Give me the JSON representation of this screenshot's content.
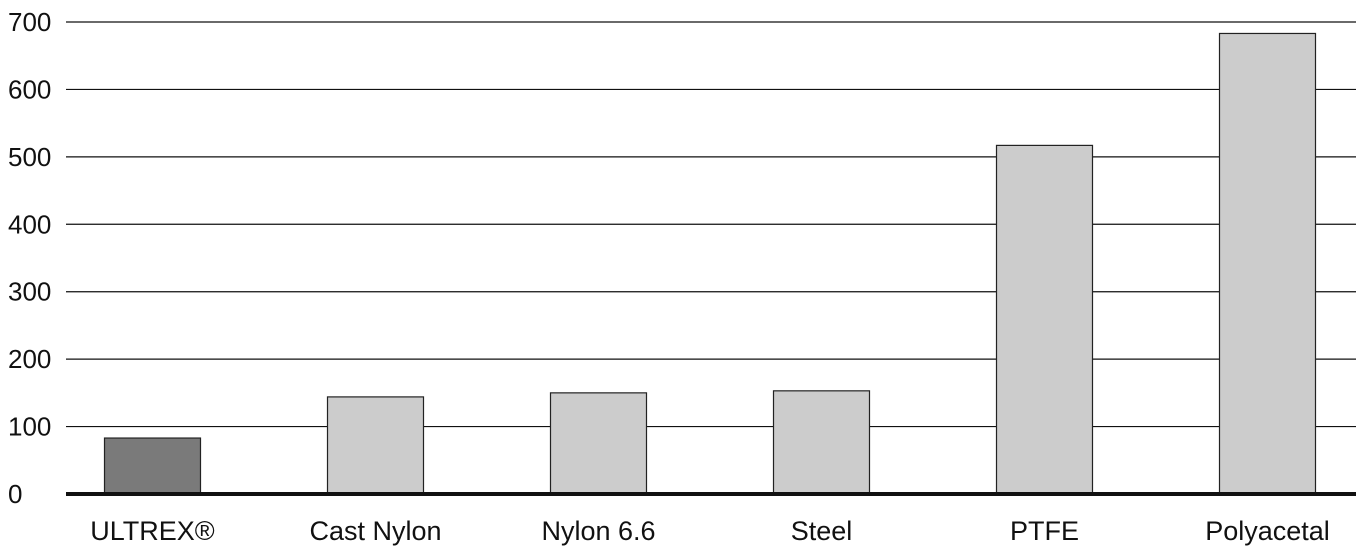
{
  "chart_data": {
    "type": "bar",
    "title": "",
    "xlabel": "",
    "ylabel": "",
    "categories": [
      "ULTREX®",
      "Cast Nylon",
      "Nylon 6.6",
      "Steel",
      "PTFE",
      "Polyacetal"
    ],
    "values": [
      83,
      144,
      150,
      153,
      517,
      683
    ],
    "ylim": [
      0,
      700
    ],
    "yticks": [
      "0",
      "100",
      "200",
      "300",
      "400",
      "500",
      "600",
      "700"
    ],
    "grid": true,
    "legend": "none",
    "colors": {
      "highlight": "#7a7a7a",
      "default": "#cccccc",
      "bar_border": "#222222",
      "grid": "#111111",
      "axis": "#111111"
    },
    "highlight_index": 0
  }
}
